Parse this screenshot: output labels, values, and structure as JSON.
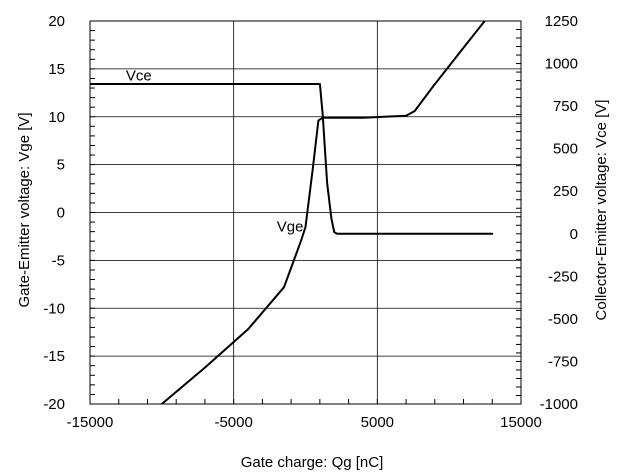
{
  "chart_data": {
    "type": "line",
    "xlabel": "Gate charge: Qg [nC]",
    "ylabel_left": "Gate-Emitter voltage:  Vge [V]",
    "ylabel_right": "Collector-Emitter voltage: Vce [V]",
    "xlim": [
      -15000,
      15000
    ],
    "ylim_left": [
      -20,
      20
    ],
    "ylim_right": [
      -1000,
      1250
    ],
    "x_ticks": [
      -15000,
      -5000,
      5000,
      15000
    ],
    "x_tick_labels": [
      "-15000",
      "-5000",
      "5000",
      "15000"
    ],
    "y_left_ticks": [
      -20,
      -15,
      -10,
      -5,
      0,
      5,
      10,
      15,
      20
    ],
    "y_left_tick_labels": [
      "-20",
      "-15",
      "-10",
      "-5",
      "0",
      "5",
      "10",
      "15",
      "20"
    ],
    "y_right_ticks": [
      -1000,
      -750,
      -500,
      -250,
      0,
      250,
      500,
      750,
      1000,
      1250
    ],
    "y_right_tick_labels": [
      "-1000",
      "-750",
      "-500",
      "-250",
      "0",
      "250",
      "500",
      "750",
      "1000",
      "1250"
    ],
    "grid": true,
    "series": [
      {
        "name": "Vge",
        "axis": "left",
        "x": [
          -10000,
          -7000,
          -4000,
          -1500,
          -300,
          0,
          500,
          900,
          1200,
          1500,
          2000,
          4000,
          7000,
          7600,
          9000,
          11000,
          13000
        ],
        "y": [
          -20,
          -16.2,
          -12.2,
          -7.8,
          -2.9,
          -1.5,
          4.5,
          9.6,
          9.9,
          9.9,
          9.9,
          9.9,
          10.1,
          10.6,
          13.4,
          17.2,
          21
        ]
      },
      {
        "name": "Vce",
        "axis": "right",
        "x": [
          -15000,
          1000,
          1200,
          1500,
          1800,
          2000,
          2200,
          2600,
          4000,
          8000,
          13000
        ],
        "y": [
          880,
          880,
          700,
          300,
          90,
          10,
          0,
          0,
          0,
          0,
          0
        ]
      }
    ],
    "annotations": [
      {
        "text": "Vce",
        "series": "Vce",
        "x": -12500,
        "y": 900,
        "axis": "right"
      },
      {
        "text": "Vge",
        "series": "Vge",
        "x": -2000,
        "y": -2,
        "axis": "left"
      }
    ]
  }
}
